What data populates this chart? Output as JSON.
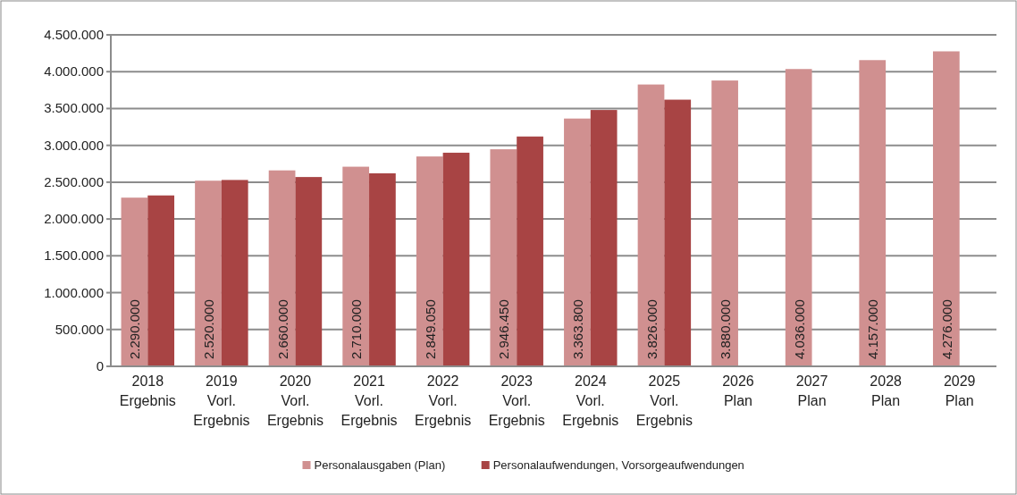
{
  "chart_data": {
    "type": "bar",
    "categories": [
      "2018 Ergebnis",
      "2019 Vorl. Ergebnis",
      "2020 Vorl. Ergebnis",
      "2021 Vorl. Ergebnis",
      "2022 Vorl. Ergebnis",
      "2023 Vorl. Ergebnis",
      "2024 Vorl. Ergebnis",
      "2025 Vorl. Ergebnis",
      "2026 Plan",
      "2027 Plan",
      "2028 Plan",
      "2029 Plan"
    ],
    "series": [
      {
        "name": "Personalausgaben (Plan)",
        "color": "#d09090",
        "values": [
          2290000,
          2520000,
          2660000,
          2710000,
          2849050,
          2946450,
          3363800,
          3826000,
          3880000,
          4036000,
          4157000,
          4276000
        ],
        "value_labels": [
          "2.290.000",
          "2.520.000",
          "2.660.000",
          "2.710.000",
          "2.849.050",
          "2.946.450",
          "3.363.800",
          "3.826.000",
          "3.880.000",
          "4.036.000",
          "4.157.000",
          "4.276.000"
        ]
      },
      {
        "name": "Personalaufwendungen, Vorsorgeaufwendungen",
        "color": "#a84444",
        "values": [
          2320000,
          2530000,
          2570000,
          2620000,
          2900000,
          3120000,
          3480000,
          3620000,
          null,
          null,
          null,
          null
        ]
      }
    ],
    "ylim": [
      0,
      4500000
    ],
    "yticks": [
      {
        "value": 0,
        "label": "0"
      },
      {
        "value": 500000,
        "label": "500.000"
      },
      {
        "value": 1000000,
        "label": "1.000.000"
      },
      {
        "value": 1500000,
        "label": "1.500.000"
      },
      {
        "value": 2000000,
        "label": "2.000.000"
      },
      {
        "value": 2500000,
        "label": "2.500.000"
      },
      {
        "value": 3000000,
        "label": "3.000.000"
      },
      {
        "value": 3500000,
        "label": "3.500.000"
      },
      {
        "value": 4000000,
        "label": "4.000.000"
      },
      {
        "value": 4500000,
        "label": "4.500.000"
      }
    ],
    "grid": "y",
    "legend": "bottom"
  }
}
